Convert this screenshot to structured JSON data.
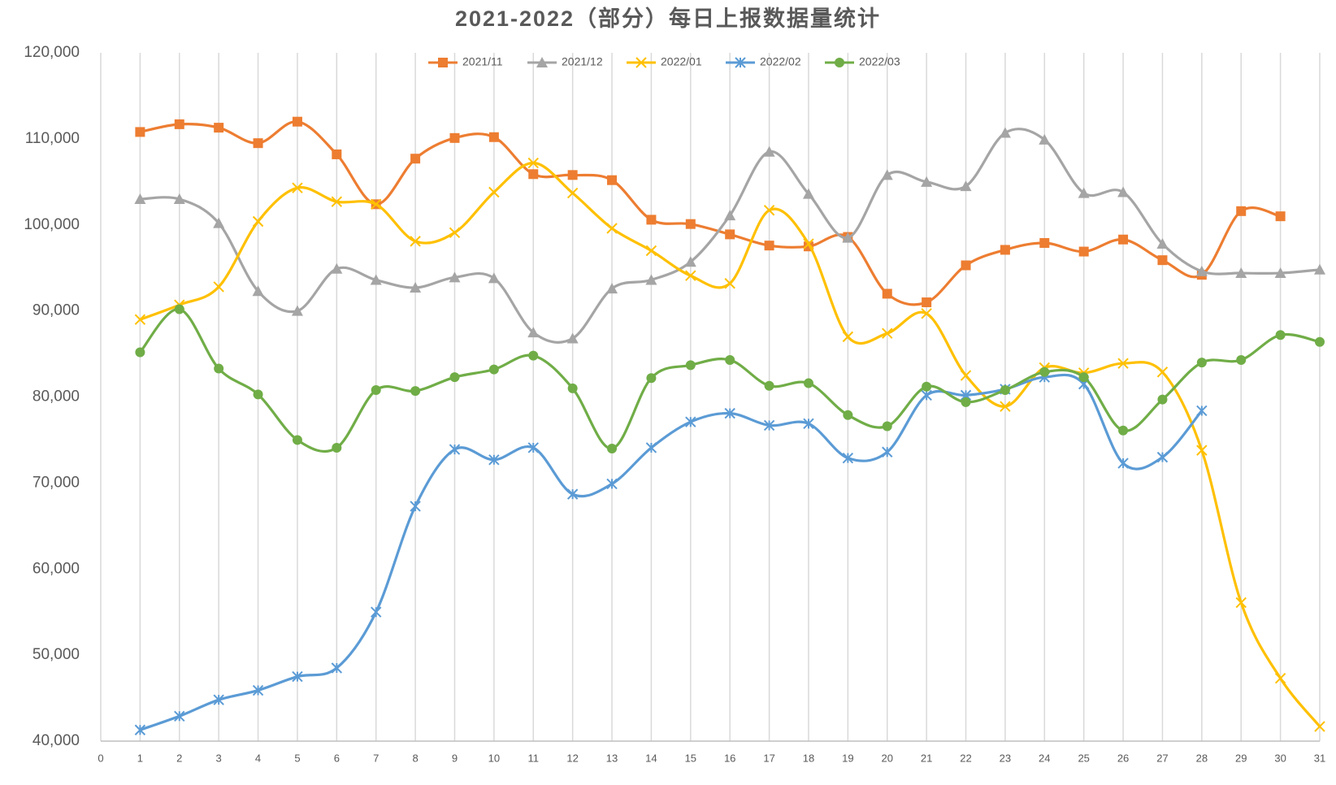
{
  "chart_data": {
    "type": "line",
    "title": "2021-2022（部分）每日上报数据量统计",
    "x": [
      1,
      2,
      3,
      4,
      5,
      6,
      7,
      8,
      9,
      10,
      11,
      12,
      13,
      14,
      15,
      16,
      17,
      18,
      19,
      20,
      21,
      22,
      23,
      24,
      25,
      26,
      27,
      28,
      29,
      30,
      31
    ],
    "series": [
      {
        "name": "2021/11",
        "color": "#ed7d31",
        "marker": "square",
        "values": [
          110800,
          111700,
          111300,
          109500,
          112000,
          108200,
          102400,
          107700,
          110100,
          110200,
          105900,
          105800,
          105200,
          100600,
          100100,
          98900,
          97600,
          97500,
          98600,
          92000,
          91000,
          95300,
          97100,
          97900,
          96900,
          98300,
          95900,
          94200,
          101600,
          101000,
          null
        ]
      },
      {
        "name": "2021/12",
        "color": "#a5a5a5",
        "marker": "triangle",
        "values": [
          103000,
          103000,
          100200,
          92300,
          90000,
          94900,
          93600,
          92700,
          93900,
          93800,
          87500,
          86800,
          92600,
          93600,
          95700,
          101100,
          108500,
          103600,
          98500,
          105800,
          105000,
          104500,
          110700,
          109900,
          103700,
          103800,
          97800,
          94600,
          94400,
          94400,
          94800
        ]
      },
      {
        "name": "2022/01",
        "color": "#ffc000",
        "marker": "x",
        "values": [
          89000,
          90700,
          92800,
          100400,
          104300,
          102700,
          102400,
          98100,
          99100,
          103800,
          107200,
          103700,
          99600,
          97000,
          94100,
          93200,
          101700,
          97800,
          87000,
          87400,
          89700,
          82500,
          78900,
          83400,
          82800,
          83900,
          82900,
          73800,
          56100,
          47300,
          41700
        ]
      },
      {
        "name": "2022/02",
        "color": "#5b9bd5",
        "marker": "star",
        "values": [
          41300,
          42900,
          44800,
          45900,
          47500,
          48500,
          55000,
          67300,
          73900,
          72700,
          74100,
          68700,
          69900,
          74100,
          77100,
          78100,
          76700,
          76900,
          72900,
          73600,
          80200,
          80200,
          80900,
          82300,
          81500,
          72300,
          73000,
          78400,
          null,
          null,
          null
        ]
      },
      {
        "name": "2022/03",
        "color": "#70ad47",
        "marker": "circle",
        "values": [
          85200,
          90200,
          83300,
          80300,
          75000,
          74100,
          80800,
          80700,
          82300,
          83200,
          84800,
          81000,
          74000,
          82200,
          83700,
          84300,
          81300,
          81600,
          77900,
          76600,
          81200,
          79400,
          80800,
          82900,
          82300,
          76100,
          79700,
          84000,
          84300,
          87200,
          86400
        ]
      }
    ],
    "xlim": [
      0,
      31
    ],
    "xticks": [
      0,
      1,
      2,
      3,
      4,
      5,
      6,
      7,
      8,
      9,
      10,
      11,
      12,
      13,
      14,
      15,
      16,
      17,
      18,
      19,
      20,
      21,
      22,
      23,
      24,
      25,
      26,
      27,
      28,
      29,
      30,
      31
    ],
    "ylim": [
      40000,
      120000
    ],
    "yticks": [
      {
        "value": 40000,
        "label": "40,000"
      },
      {
        "value": 50000,
        "label": "50,000"
      },
      {
        "value": 60000,
        "label": "60,000"
      },
      {
        "value": 70000,
        "label": "70,000"
      },
      {
        "value": 80000,
        "label": "80,000"
      },
      {
        "value": 90000,
        "label": "90,000"
      },
      {
        "value": 100000,
        "label": "100,000"
      },
      {
        "value": 110000,
        "label": "110,000"
      },
      {
        "value": 120000,
        "label": "120,000"
      }
    ],
    "grid": "x",
    "smooth": true,
    "legend": "top"
  }
}
